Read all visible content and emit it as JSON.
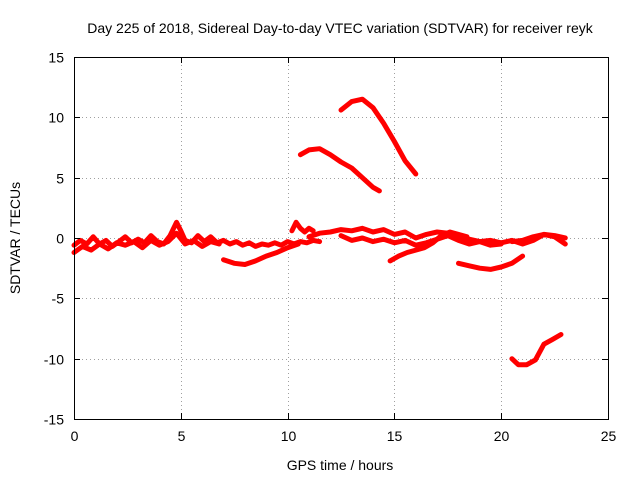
{
  "chart_data": {
    "type": "line",
    "title": "Day 225 of 2018, Sidereal Day-to-day VTEC variation (SDTVAR) for receiver reyk",
    "xlabel": "GPS time / hours",
    "ylabel": "SDTVAR / TECUs",
    "xlim": [
      0,
      25
    ],
    "ylim": [
      -15,
      15
    ],
    "xticks": [
      0,
      5,
      10,
      15,
      20,
      25
    ],
    "yticks": [
      -15,
      -10,
      -5,
      0,
      5,
      10,
      15
    ],
    "xtick_labels": [
      "0",
      "5",
      "10",
      "15",
      "20",
      "25"
    ],
    "ytick_labels": [
      "-15",
      "-10",
      "-5",
      "0",
      "5",
      "10",
      "15"
    ],
    "grid": true,
    "legend": "none",
    "series_color": "#ff0000",
    "series": [
      {
        "name": "s1",
        "x": [
          0,
          0.3,
          0.6,
          0.9,
          1.2,
          1.5,
          1.8,
          2.1,
          2.4,
          2.7,
          3.0,
          3.3,
          3.6,
          3.9,
          4.2,
          4.5,
          4.8,
          5.0,
          5.2,
          5.5,
          5.8,
          6.1,
          6.4,
          6.7,
          7.0,
          7.3,
          7.6,
          7.9,
          8.2,
          8.5,
          8.8,
          9.1,
          9.4,
          9.7,
          10.0,
          10.3,
          10.6,
          10.9,
          11.2,
          11.5
        ],
        "y": [
          -0.6,
          -0.2,
          -0.5,
          0.1,
          -0.5,
          -0.2,
          -0.7,
          -0.3,
          0.1,
          -0.4,
          -0.1,
          -0.4,
          0.2,
          -0.3,
          -0.5,
          0.2,
          1.3,
          0.6,
          -0.2,
          -0.4,
          0.2,
          -0.3,
          0.1,
          -0.4,
          -0.2,
          -0.5,
          -0.3,
          -0.6,
          -0.4,
          -0.7,
          -0.5,
          -0.6,
          -0.4,
          -0.6,
          -0.3,
          -0.5,
          -0.3,
          -0.4,
          -0.2,
          -0.3
        ]
      },
      {
        "name": "s2",
        "x": [
          0,
          0.4,
          0.8,
          1.2,
          1.6,
          2.0,
          2.4,
          2.8,
          3.2,
          3.6,
          4.0,
          4.4,
          4.8,
          5.2,
          5.6,
          6.0,
          6.4,
          6.8
        ],
        "y": [
          -1.2,
          -0.7,
          -1.0,
          -0.5,
          -0.9,
          -0.4,
          -0.6,
          -0.3,
          -0.8,
          -0.2,
          -0.6,
          -0.3,
          0.4,
          -0.5,
          -0.2,
          -0.7,
          -0.3,
          -0.5
        ]
      },
      {
        "name": "s3",
        "x": [
          11.0,
          11.5,
          12.0,
          12.5,
          13.0,
          13.5,
          14.0,
          14.5,
          15.0,
          15.5,
          16.0,
          16.5,
          17.0,
          17.5,
          18.0,
          18.5,
          19.0,
          19.5,
          20.0,
          20.5,
          21.0,
          21.5,
          22.0,
          22.5,
          23.0
        ],
        "y": [
          0.1,
          0.4,
          0.5,
          0.7,
          0.6,
          0.8,
          0.5,
          0.7,
          0.3,
          0.5,
          0.0,
          0.3,
          0.5,
          0.4,
          0.2,
          -0.1,
          -0.3,
          -0.2,
          -0.4,
          -0.2,
          -0.5,
          -0.2,
          0.3,
          0.1,
          -0.5
        ]
      },
      {
        "name": "s4",
        "x": [
          12.5,
          13.0,
          13.5,
          14.0,
          14.5,
          15.0,
          15.5,
          16.0,
          16.5,
          17.0,
          17.5,
          18.0,
          18.5,
          19.0,
          19.5,
          20.0
        ],
        "y": [
          0.2,
          -0.2,
          0.0,
          -0.3,
          -0.1,
          -0.4,
          -0.2,
          -0.6,
          -0.4,
          -0.1,
          0.2,
          -0.2,
          -0.5,
          -0.3,
          -0.6,
          -0.5
        ]
      },
      {
        "name": "s5",
        "x": [
          14.8,
          15.2,
          15.6,
          16.0,
          16.4,
          16.8,
          17.2,
          17.6,
          18.0,
          18.4
        ],
        "y": [
          -1.9,
          -1.5,
          -1.2,
          -1.0,
          -0.8,
          -0.4,
          0.2,
          0.5,
          0.3,
          0.1
        ]
      },
      {
        "name": "s6",
        "x": [
          7.0,
          7.5,
          8.0,
          8.5,
          9.0,
          9.5,
          10.0,
          10.5
        ],
        "y": [
          -1.8,
          -2.1,
          -2.2,
          -1.9,
          -1.5,
          -1.2,
          -0.8,
          -0.5
        ]
      },
      {
        "name": "s7",
        "x": [
          18.0,
          18.5,
          19.0,
          19.5,
          20.0,
          20.5,
          21.0
        ],
        "y": [
          -2.1,
          -2.3,
          -2.5,
          -2.6,
          -2.4,
          -2.1,
          -1.5
        ]
      },
      {
        "name": "s8",
        "x": [
          20.5,
          21.0,
          21.5,
          22.0,
          22.5,
          23.0
        ],
        "y": [
          -0.3,
          -0.2,
          0.1,
          0.3,
          0.2,
          0.0
        ]
      },
      {
        "name": "s9",
        "x": [
          10.2,
          10.4,
          10.6,
          10.8,
          11.0,
          11.2
        ],
        "y": [
          0.6,
          1.3,
          0.8,
          0.5,
          0.8,
          0.6
        ]
      },
      {
        "name": "s10",
        "x": [
          10.6,
          11.0,
          11.5,
          12.0,
          12.5,
          13.0,
          13.5,
          14.0,
          14.3
        ],
        "y": [
          6.9,
          7.3,
          7.4,
          6.9,
          6.3,
          5.8,
          5.0,
          4.2,
          3.9
        ]
      },
      {
        "name": "s11",
        "x": [
          12.5,
          13.0,
          13.5,
          14.0,
          14.5,
          15.0,
          15.5,
          16.0
        ],
        "y": [
          10.6,
          11.3,
          11.5,
          10.8,
          9.5,
          8.0,
          6.4,
          5.3
        ]
      },
      {
        "name": "s12",
        "x": [
          20.5,
          20.8,
          21.2,
          21.6,
          22.0,
          22.4,
          22.8
        ],
        "y": [
          -10.0,
          -10.5,
          -10.5,
          -10.1,
          -8.8,
          -8.4,
          -8.0
        ]
      }
    ]
  }
}
